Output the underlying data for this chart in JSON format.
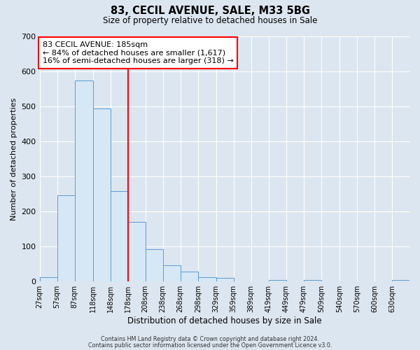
{
  "title": "83, CECIL AVENUE, SALE, M33 5BG",
  "subtitle": "Size of property relative to detached houses in Sale",
  "xlabel": "Distribution of detached houses by size in Sale",
  "ylabel": "Number of detached properties",
  "bin_labels": [
    "27sqm",
    "57sqm",
    "87sqm",
    "118sqm",
    "148sqm",
    "178sqm",
    "208sqm",
    "238sqm",
    "268sqm",
    "298sqm",
    "329sqm",
    "359sqm",
    "389sqm",
    "419sqm",
    "449sqm",
    "479sqm",
    "509sqm",
    "540sqm",
    "570sqm",
    "600sqm",
    "630sqm"
  ],
  "bar_heights": [
    12,
    245,
    573,
    493,
    258,
    170,
    92,
    47,
    28,
    13,
    10,
    0,
    0,
    5,
    0,
    5,
    0,
    0,
    0,
    0,
    5
  ],
  "bar_color": "#d6e8f5",
  "bar_edge_color": "#5b9bd5",
  "vline_x_index": 5,
  "vline_color": "red",
  "annotation_title": "83 CECIL AVENUE: 185sqm",
  "annotation_line1": "← 84% of detached houses are smaller (1,617)",
  "annotation_line2": "16% of semi-detached houses are larger (318) →",
  "annotation_box_color": "white",
  "annotation_box_edge": "red",
  "ylim": [
    0,
    700
  ],
  "yticks": [
    0,
    100,
    200,
    300,
    400,
    500,
    600,
    700
  ],
  "footer1": "Contains HM Land Registry data © Crown copyright and database right 2024.",
  "footer2": "Contains public sector information licensed under the Open Government Licence v3.0.",
  "background_color": "#dce6f0",
  "plot_background": "#dce6f0",
  "tick_positions": [
    27,
    57,
    87,
    118,
    148,
    178,
    208,
    238,
    268,
    298,
    329,
    359,
    389,
    419,
    449,
    479,
    509,
    540,
    570,
    600,
    630
  ]
}
